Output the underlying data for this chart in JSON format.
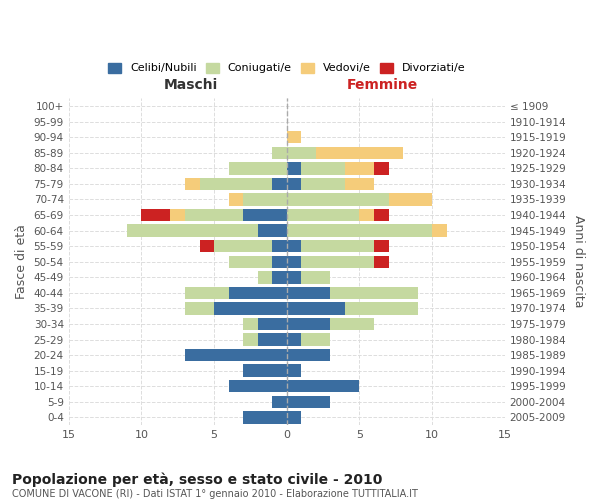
{
  "age_groups": [
    "100+",
    "95-99",
    "90-94",
    "85-89",
    "80-84",
    "75-79",
    "70-74",
    "65-69",
    "60-64",
    "55-59",
    "50-54",
    "45-49",
    "40-44",
    "35-39",
    "30-34",
    "25-29",
    "20-24",
    "15-19",
    "10-14",
    "5-9",
    "0-4"
  ],
  "birth_years": [
    "≤ 1909",
    "1910-1914",
    "1915-1919",
    "1920-1924",
    "1925-1929",
    "1930-1934",
    "1935-1939",
    "1940-1944",
    "1945-1949",
    "1950-1954",
    "1955-1959",
    "1960-1964",
    "1965-1969",
    "1970-1974",
    "1975-1979",
    "1980-1984",
    "1985-1989",
    "1990-1994",
    "1995-1999",
    "2000-2004",
    "2005-2009"
  ],
  "colors": {
    "celibi": "#3a6da0",
    "coniugati": "#c5d9a0",
    "vedovi": "#f5cc7a",
    "divorziati": "#cc2222"
  },
  "maschi": {
    "celibi": [
      0,
      0,
      0,
      0,
      0,
      1,
      0,
      3,
      2,
      1,
      1,
      1,
      4,
      5,
      2,
      2,
      7,
      3,
      4,
      1,
      3
    ],
    "coniugati": [
      0,
      0,
      0,
      1,
      4,
      5,
      3,
      4,
      9,
      4,
      3,
      1,
      3,
      2,
      1,
      1,
      0,
      0,
      0,
      0,
      0
    ],
    "vedovi": [
      0,
      0,
      0,
      0,
      0,
      1,
      1,
      1,
      0,
      0,
      0,
      0,
      0,
      0,
      0,
      0,
      0,
      0,
      0,
      0,
      0
    ],
    "divorziati": [
      0,
      0,
      0,
      0,
      0,
      0,
      0,
      2,
      0,
      1,
      0,
      0,
      0,
      0,
      0,
      0,
      0,
      0,
      0,
      0,
      0
    ]
  },
  "femmine": {
    "celibi": [
      0,
      0,
      0,
      0,
      1,
      1,
      0,
      0,
      0,
      1,
      1,
      1,
      3,
      4,
      3,
      1,
      3,
      1,
      5,
      3,
      1
    ],
    "coniugati": [
      0,
      0,
      0,
      2,
      3,
      3,
      7,
      5,
      10,
      5,
      5,
      2,
      6,
      5,
      3,
      2,
      0,
      0,
      0,
      0,
      0
    ],
    "vedovi": [
      0,
      0,
      1,
      6,
      2,
      2,
      3,
      1,
      1,
      0,
      0,
      0,
      0,
      0,
      0,
      0,
      0,
      0,
      0,
      0,
      0
    ],
    "divorziati": [
      0,
      0,
      0,
      0,
      1,
      0,
      0,
      1,
      0,
      1,
      1,
      0,
      0,
      0,
      0,
      0,
      0,
      0,
      0,
      0,
      0
    ]
  },
  "title": "Popolazione per età, sesso e stato civile - 2010",
  "subtitle": "COMUNE DI VACONE (RI) - Dati ISTAT 1° gennaio 2010 - Elaborazione TUTTITALIA.IT",
  "xlabel_left": "Maschi",
  "xlabel_right": "Femmine",
  "ylabel_left": "Fasce di età",
  "ylabel_right": "Anni di nascita",
  "xlim": 15,
  "legend_labels": [
    "Celibi/Nubili",
    "Coniugati/e",
    "Vedovi/e",
    "Divorziati/e"
  ],
  "bg_color": "#ffffff",
  "grid_color": "#dddddd"
}
